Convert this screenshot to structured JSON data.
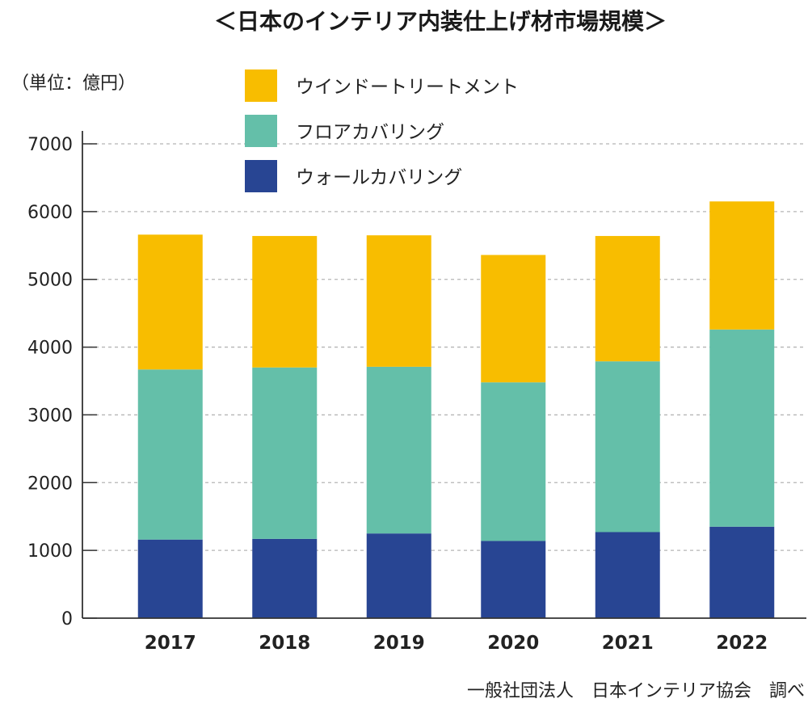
{
  "chart_data": {
    "type": "bar",
    "stacked": true,
    "title": "＜日本のインテリア内装仕上げ材市場規模＞",
    "unit_label": "（単位：億円）",
    "source": "一般社団法人　日本インテリア協会　調べ",
    "categories": [
      "2017",
      "2018",
      "2019",
      "2020",
      "2021",
      "2022"
    ],
    "series": [
      {
        "name": "ウォールカバリング",
        "color": "#284593",
        "values": [
          1160,
          1170,
          1250,
          1140,
          1270,
          1350
        ]
      },
      {
        "name": "フロアカバリング",
        "color": "#64bfa9",
        "values": [
          2510,
          2530,
          2460,
          2340,
          2520,
          2910
        ]
      },
      {
        "name": "ウインドートリートメント",
        "color": "#f8bd00",
        "values": [
          1990,
          1940,
          1940,
          1880,
          1850,
          1890
        ]
      }
    ],
    "legend_order": [
      "ウインドートリートメント",
      "フロアカバリング",
      "ウォールカバリング"
    ],
    "legend_position": "top-center",
    "y_ticks": [
      0,
      1000,
      2000,
      3000,
      4000,
      5000,
      6000,
      7000
    ],
    "ylim": [
      0,
      7000
    ],
    "grid": true,
    "xlabel": "",
    "ylabel": ""
  }
}
